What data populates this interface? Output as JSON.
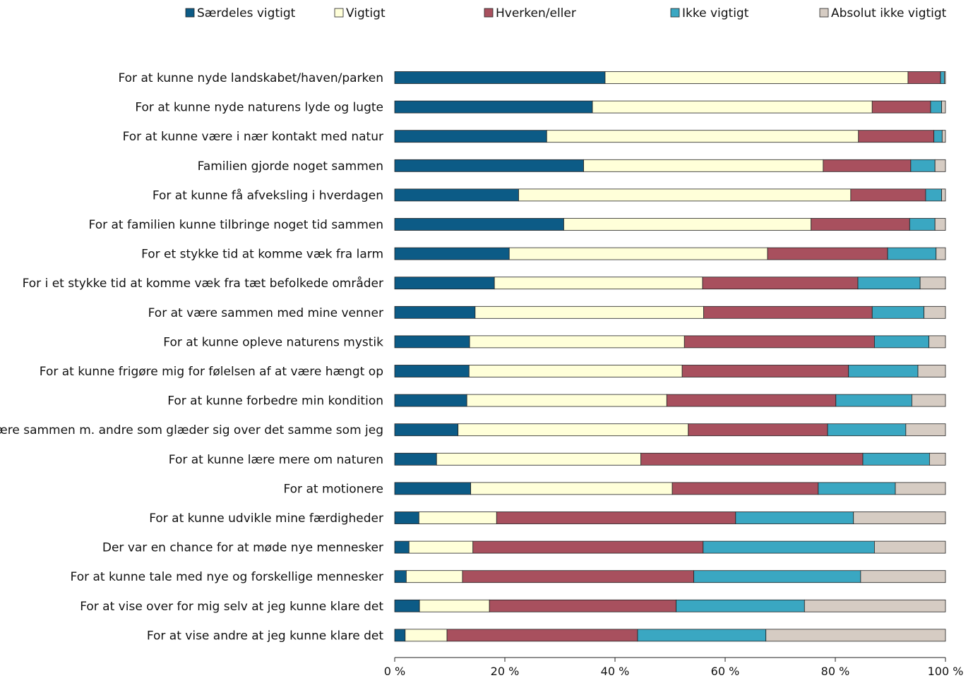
{
  "chart_data": {
    "type": "bar",
    "orientation": "horizontal",
    "stacked": "percent",
    "title": "",
    "xlabel": "",
    "ylabel": "",
    "xlim": [
      0,
      100
    ],
    "x_ticks": [
      "0 %",
      "20 %",
      "40 %",
      "60 %",
      "80 %",
      "100 %"
    ],
    "grid": false,
    "legend_position": "top",
    "categories": [
      "For at kunne nyde landskabet/haven/parken",
      "For at kunne nyde naturens lyde og lugte",
      "For at kunne være i nær kontakt med natur",
      "Familien gjorde noget sammen",
      "For at kunne få afveksling i hverdagen",
      "For at familien kunne tilbringe noget tid sammen",
      "For et stykke tid at komme væk fra larm",
      "For i et stykke tid at komme væk fra tæt befolkede områder",
      "For at være sammen med mine venner",
      "For at kunne opleve naturens mystik",
      "For at kunne frigøre mig for følelsen af at være hængt op",
      "For at kunne forbedre min kondition",
      "Være sammen m. andre som glæder sig over det samme som jeg",
      "For at kunne lære mere om naturen",
      "For at motionere",
      "For at kunne udvikle mine færdigheder",
      "Der var en chance for at møde nye mennesker",
      "For at kunne tale med nye og forskellige mennesker",
      "For at vise over for mig selv at jeg kunne klare det",
      "For at vise andre at jeg kunne klare det"
    ],
    "series": [
      {
        "name": "Særdeles vigtigt",
        "color": "#0c5b86",
        "values": [
          38.2,
          35.9,
          27.6,
          34.3,
          22.5,
          30.7,
          20.8,
          18.1,
          14.6,
          13.6,
          13.5,
          13.1,
          11.5,
          7.6,
          13.8,
          4.4,
          2.6,
          2.1,
          4.5,
          1.9
        ]
      },
      {
        "name": "Vigtigt",
        "color": "#ffffd9",
        "values": [
          55.0,
          50.8,
          56.6,
          43.5,
          60.3,
          44.9,
          46.9,
          37.8,
          41.5,
          39.0,
          38.7,
          36.3,
          41.8,
          37.1,
          36.6,
          14.1,
          11.6,
          10.2,
          12.7,
          7.6
        ]
      },
      {
        "name": "Hverken/eller",
        "color": "#a8505e",
        "values": [
          5.9,
          10.6,
          13.7,
          15.9,
          13.6,
          17.9,
          21.8,
          28.2,
          30.6,
          34.5,
          30.2,
          30.7,
          25.3,
          40.3,
          26.5,
          43.4,
          41.8,
          42.0,
          33.9,
          34.6
        ]
      },
      {
        "name": "Ikke vigtigt",
        "color": "#3aa7c2",
        "values": [
          0.7,
          2.0,
          1.5,
          4.4,
          2.9,
          4.6,
          8.8,
          11.3,
          9.4,
          9.9,
          12.6,
          13.8,
          14.2,
          12.1,
          14.0,
          21.4,
          31.1,
          30.3,
          23.3,
          23.3
        ]
      },
      {
        "name": "Absolut ikke vigtigt",
        "color": "#d6ccc3",
        "values": [
          0.2,
          0.7,
          0.6,
          1.9,
          0.7,
          1.9,
          1.7,
          4.6,
          3.9,
          3.0,
          5.0,
          6.1,
          7.2,
          2.9,
          9.1,
          16.7,
          12.9,
          15.4,
          25.6,
          32.6
        ]
      }
    ]
  }
}
